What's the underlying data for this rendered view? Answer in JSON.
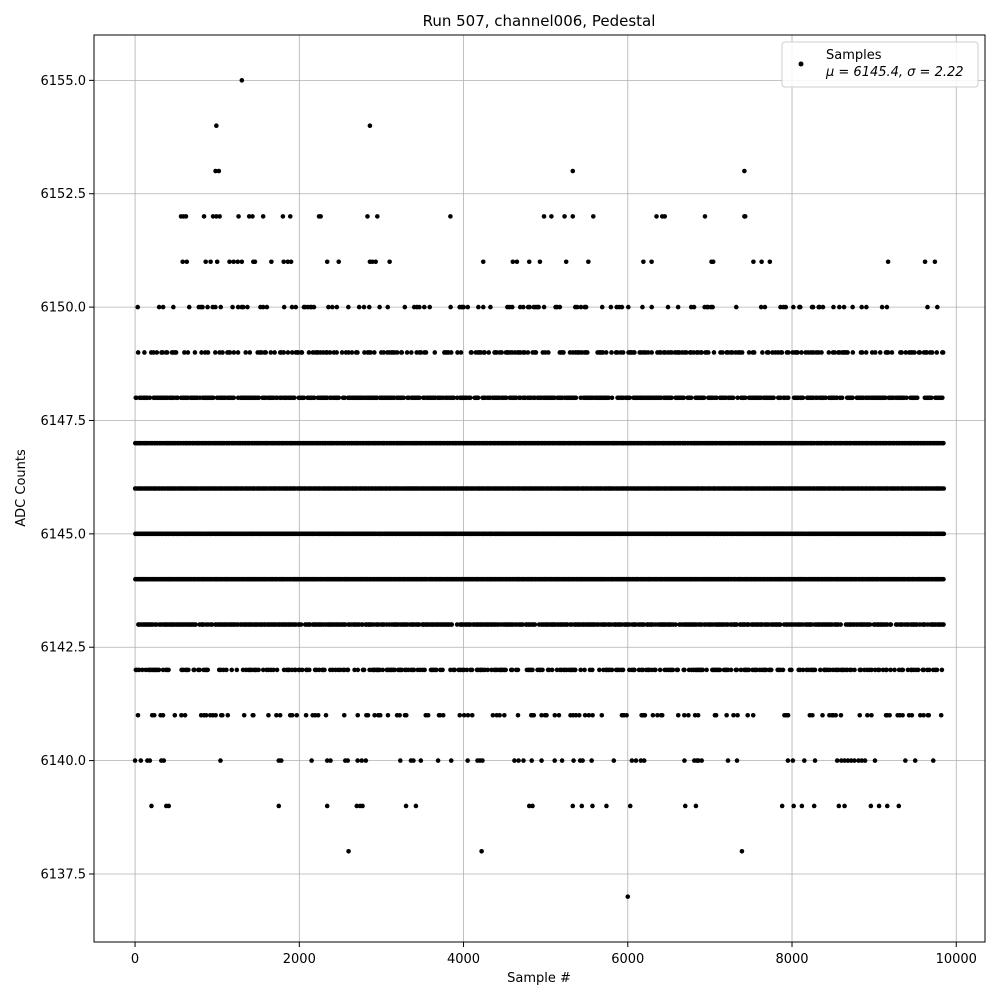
{
  "chart_data": {
    "type": "scatter",
    "title": "Run 507, channel006, Pedestal",
    "xlabel": "Sample #",
    "ylabel": "ADC Counts",
    "xlim": [
      -500,
      10350
    ],
    "ylim": [
      6136.0,
      6156.0
    ],
    "x_ticks": [
      0,
      2000,
      4000,
      6000,
      8000,
      10000
    ],
    "x_tick_labels": [
      "0",
      "2000",
      "4000",
      "6000",
      "8000",
      "10000"
    ],
    "y_ticks": [
      6137.5,
      6140.0,
      6142.5,
      6145.0,
      6147.5,
      6150.0,
      6152.5,
      6155.0
    ],
    "y_tick_labels": [
      "6137.5",
      "6140.0",
      "6142.5",
      "6145.0",
      "6147.5",
      "6150.0",
      "6152.5",
      "6155.0"
    ],
    "grid": true,
    "legend_position": "top-right",
    "marker_color": "#000000",
    "n_samples": 9850,
    "series": [
      {
        "name": "Samples",
        "stats_label": "μ = 6145.4, σ = 2.22",
        "mean": 6145.4,
        "sigma": 2.22,
        "levels": [
          6137,
          6138,
          6139,
          6140,
          6141,
          6142,
          6143,
          6144,
          6145,
          6146,
          6147,
          6148,
          6149,
          6150,
          6151,
          6152,
          6153,
          6154,
          6155
        ],
        "points": [
          [
            6000,
            6137
          ],
          [
            2600,
            6138
          ],
          [
            4220,
            6138
          ],
          [
            7390,
            6138
          ],
          [
            200,
            6139
          ],
          [
            380,
            6139
          ],
          [
            410,
            6139
          ],
          [
            1750,
            6139
          ],
          [
            2340,
            6139
          ],
          [
            2700,
            6139
          ],
          [
            2740,
            6139
          ],
          [
            2770,
            6139
          ],
          [
            3300,
            6139
          ],
          [
            3420,
            6139
          ],
          [
            4800,
            6139
          ],
          [
            4840,
            6139
          ],
          [
            5330,
            6139
          ],
          [
            5440,
            6139
          ],
          [
            5570,
            6139
          ],
          [
            5740,
            6139
          ],
          [
            6030,
            6139
          ],
          [
            6700,
            6139
          ],
          [
            6830,
            6139
          ],
          [
            7880,
            6139
          ],
          [
            8020,
            6139
          ],
          [
            8120,
            6139
          ],
          [
            8270,
            6139
          ],
          [
            8570,
            6139
          ],
          [
            8640,
            6139
          ],
          [
            8960,
            6139
          ],
          [
            9060,
            6139
          ],
          [
            9160,
            6139
          ],
          [
            9300,
            6139
          ],
          [
            0,
            6140
          ],
          [
            70,
            6140
          ],
          [
            150,
            6140
          ],
          [
            180,
            6140
          ],
          [
            320,
            6140
          ],
          [
            350,
            6140
          ],
          [
            1040,
            6140
          ],
          [
            1750,
            6140
          ],
          [
            1780,
            6140
          ],
          [
            2150,
            6140
          ],
          [
            2340,
            6140
          ],
          [
            2380,
            6140
          ],
          [
            2560,
            6140
          ],
          [
            2590,
            6140
          ],
          [
            2710,
            6140
          ],
          [
            2760,
            6140
          ],
          [
            2810,
            6140
          ],
          [
            3230,
            6140
          ],
          [
            3360,
            6140
          ],
          [
            3390,
            6140
          ],
          [
            3480,
            6140
          ],
          [
            3690,
            6140
          ],
          [
            3850,
            6140
          ],
          [
            4050,
            6140
          ],
          [
            4170,
            6140
          ],
          [
            4200,
            6140
          ],
          [
            4230,
            6140
          ],
          [
            4620,
            6140
          ],
          [
            4670,
            6140
          ],
          [
            4730,
            6140
          ],
          [
            4830,
            6140
          ],
          [
            4950,
            6140
          ],
          [
            5110,
            6140
          ],
          [
            5200,
            6140
          ],
          [
            5340,
            6140
          ],
          [
            5420,
            6140
          ],
          [
            5450,
            6140
          ],
          [
            5560,
            6140
          ],
          [
            5830,
            6140
          ],
          [
            6050,
            6140
          ],
          [
            6100,
            6140
          ],
          [
            6160,
            6140
          ],
          [
            6200,
            6140
          ],
          [
            6690,
            6140
          ],
          [
            6810,
            6140
          ],
          [
            6840,
            6140
          ],
          [
            6860,
            6140
          ],
          [
            6900,
            6140
          ],
          [
            7220,
            6140
          ],
          [
            7330,
            6140
          ],
          [
            7950,
            6140
          ],
          [
            8010,
            6140
          ],
          [
            8150,
            6140
          ],
          [
            8280,
            6140
          ],
          [
            8550,
            6140
          ],
          [
            8600,
            6140
          ],
          [
            8640,
            6140
          ],
          [
            8680,
            6140
          ],
          [
            8720,
            6140
          ],
          [
            8760,
            6140
          ],
          [
            8810,
            6140
          ],
          [
            8850,
            6140
          ],
          [
            8890,
            6140
          ],
          [
            9010,
            6140
          ],
          [
            9380,
            6140
          ],
          [
            9500,
            6140
          ],
          [
            9720,
            6140
          ],
          [
            1300,
            6155
          ],
          [
            990,
            6154
          ],
          [
            2860,
            6154
          ],
          [
            980,
            6153
          ],
          [
            1020,
            6153
          ],
          [
            5330,
            6153
          ],
          [
            7420,
            6153
          ],
          [
            560,
            6152
          ],
          [
            590,
            6152
          ],
          [
            620,
            6152
          ],
          [
            840,
            6152
          ],
          [
            950,
            6152
          ],
          [
            990,
            6152
          ],
          [
            1030,
            6152
          ],
          [
            1260,
            6152
          ],
          [
            1390,
            6152
          ],
          [
            1430,
            6152
          ],
          [
            1560,
            6152
          ],
          [
            1800,
            6152
          ],
          [
            1890,
            6152
          ],
          [
            2240,
            6152
          ],
          [
            2260,
            6152
          ],
          [
            2830,
            6152
          ],
          [
            2950,
            6152
          ],
          [
            3840,
            6152
          ],
          [
            4980,
            6152
          ],
          [
            5070,
            6152
          ],
          [
            5230,
            6152
          ],
          [
            5330,
            6152
          ],
          [
            5580,
            6152
          ],
          [
            6350,
            6152
          ],
          [
            6420,
            6152
          ],
          [
            6450,
            6152
          ],
          [
            6940,
            6152
          ],
          [
            7420,
            6152
          ],
          [
            7430,
            6152
          ],
          [
            580,
            6151
          ],
          [
            630,
            6151
          ],
          [
            860,
            6151
          ],
          [
            920,
            6151
          ],
          [
            1000,
            6151
          ],
          [
            1150,
            6151
          ],
          [
            1200,
            6151
          ],
          [
            1250,
            6151
          ],
          [
            1300,
            6151
          ],
          [
            1440,
            6151
          ],
          [
            1460,
            6151
          ],
          [
            1660,
            6151
          ],
          [
            1810,
            6151
          ],
          [
            1860,
            6151
          ],
          [
            1900,
            6151
          ],
          [
            2340,
            6151
          ],
          [
            2480,
            6151
          ],
          [
            2860,
            6151
          ],
          [
            2890,
            6151
          ],
          [
            2930,
            6151
          ],
          [
            3100,
            6151
          ],
          [
            4240,
            6151
          ],
          [
            4600,
            6151
          ],
          [
            4650,
            6151
          ],
          [
            4800,
            6151
          ],
          [
            4930,
            6151
          ],
          [
            5250,
            6151
          ],
          [
            5520,
            6151
          ],
          [
            6190,
            6151
          ],
          [
            6290,
            6151
          ],
          [
            7020,
            6151
          ],
          [
            7040,
            6151
          ],
          [
            7530,
            6151
          ],
          [
            7630,
            6151
          ],
          [
            7730,
            6151
          ],
          [
            9170,
            6151
          ],
          [
            9620,
            6151
          ],
          [
            9740,
            6151
          ]
        ]
      }
    ]
  }
}
